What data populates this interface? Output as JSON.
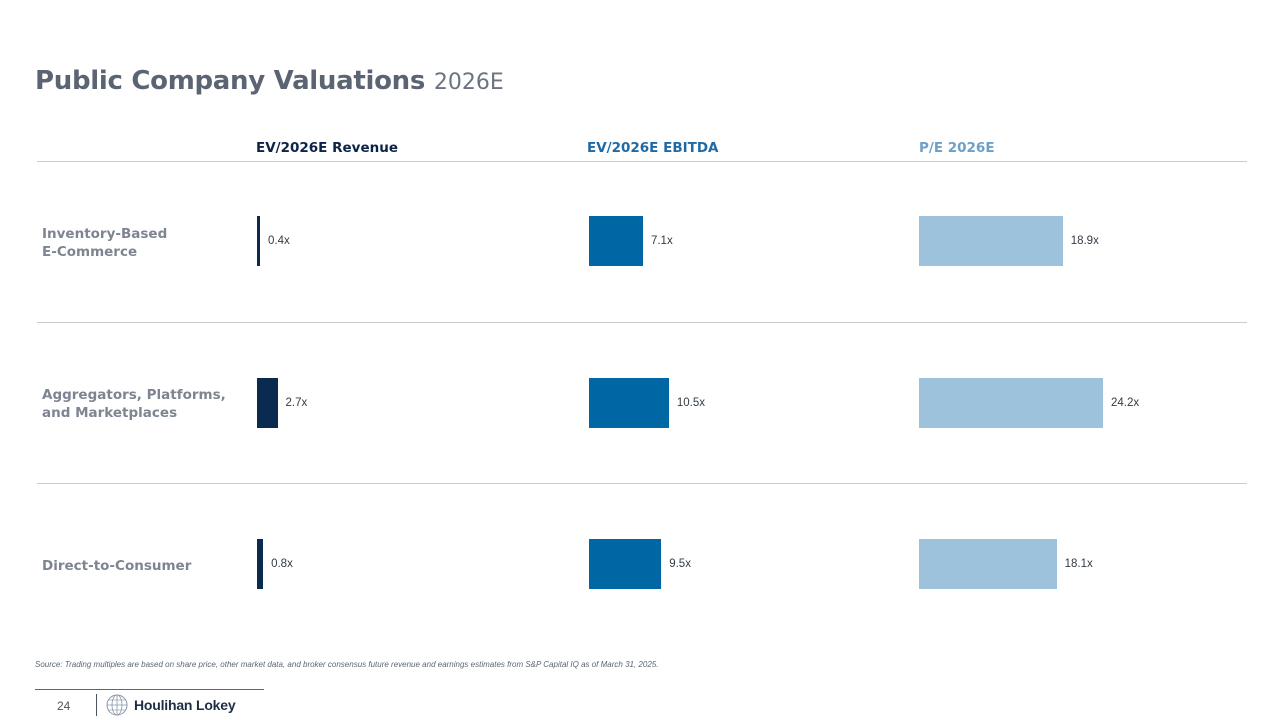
{
  "page": {
    "title": "Public Company Valuations",
    "title_suffix": "2026E",
    "source_note": "Source: Trading multiples are based on share price, other market data, and broker consensus future revenue and earnings estimates from S&P Capital IQ as of March 31, 2025.",
    "page_number": "24",
    "brand": "Houlihan Lokey"
  },
  "chart_data": {
    "type": "bar",
    "orientation": "horizontal",
    "categories": [
      "Inventory-Based\nE-Commerce",
      "Aggregators, Platforms,\nand Marketplaces",
      "Direct-to-Consumer"
    ],
    "series": [
      {
        "name": "EV/2026E Revenue",
        "values": [
          0.4,
          2.7,
          0.8
        ],
        "labels": [
          "0.4x",
          "2.7x",
          "0.8x"
        ],
        "color": "#0b2a4f"
      },
      {
        "name": "EV/2026E EBITDA",
        "values": [
          7.1,
          10.5,
          9.5
        ],
        "labels": [
          "7.1x",
          "10.5x",
          "9.5x"
        ],
        "color": "#0066a4"
      },
      {
        "name": "P/E 2026E",
        "values": [
          18.9,
          24.2,
          18.1
        ],
        "labels": [
          "18.9x",
          "24.2x",
          "18.1x"
        ],
        "color": "#9dc3dc"
      }
    ],
    "header_colors": [
      "#0b2447",
      "#1f6aa5",
      "#6e9fc6"
    ]
  }
}
